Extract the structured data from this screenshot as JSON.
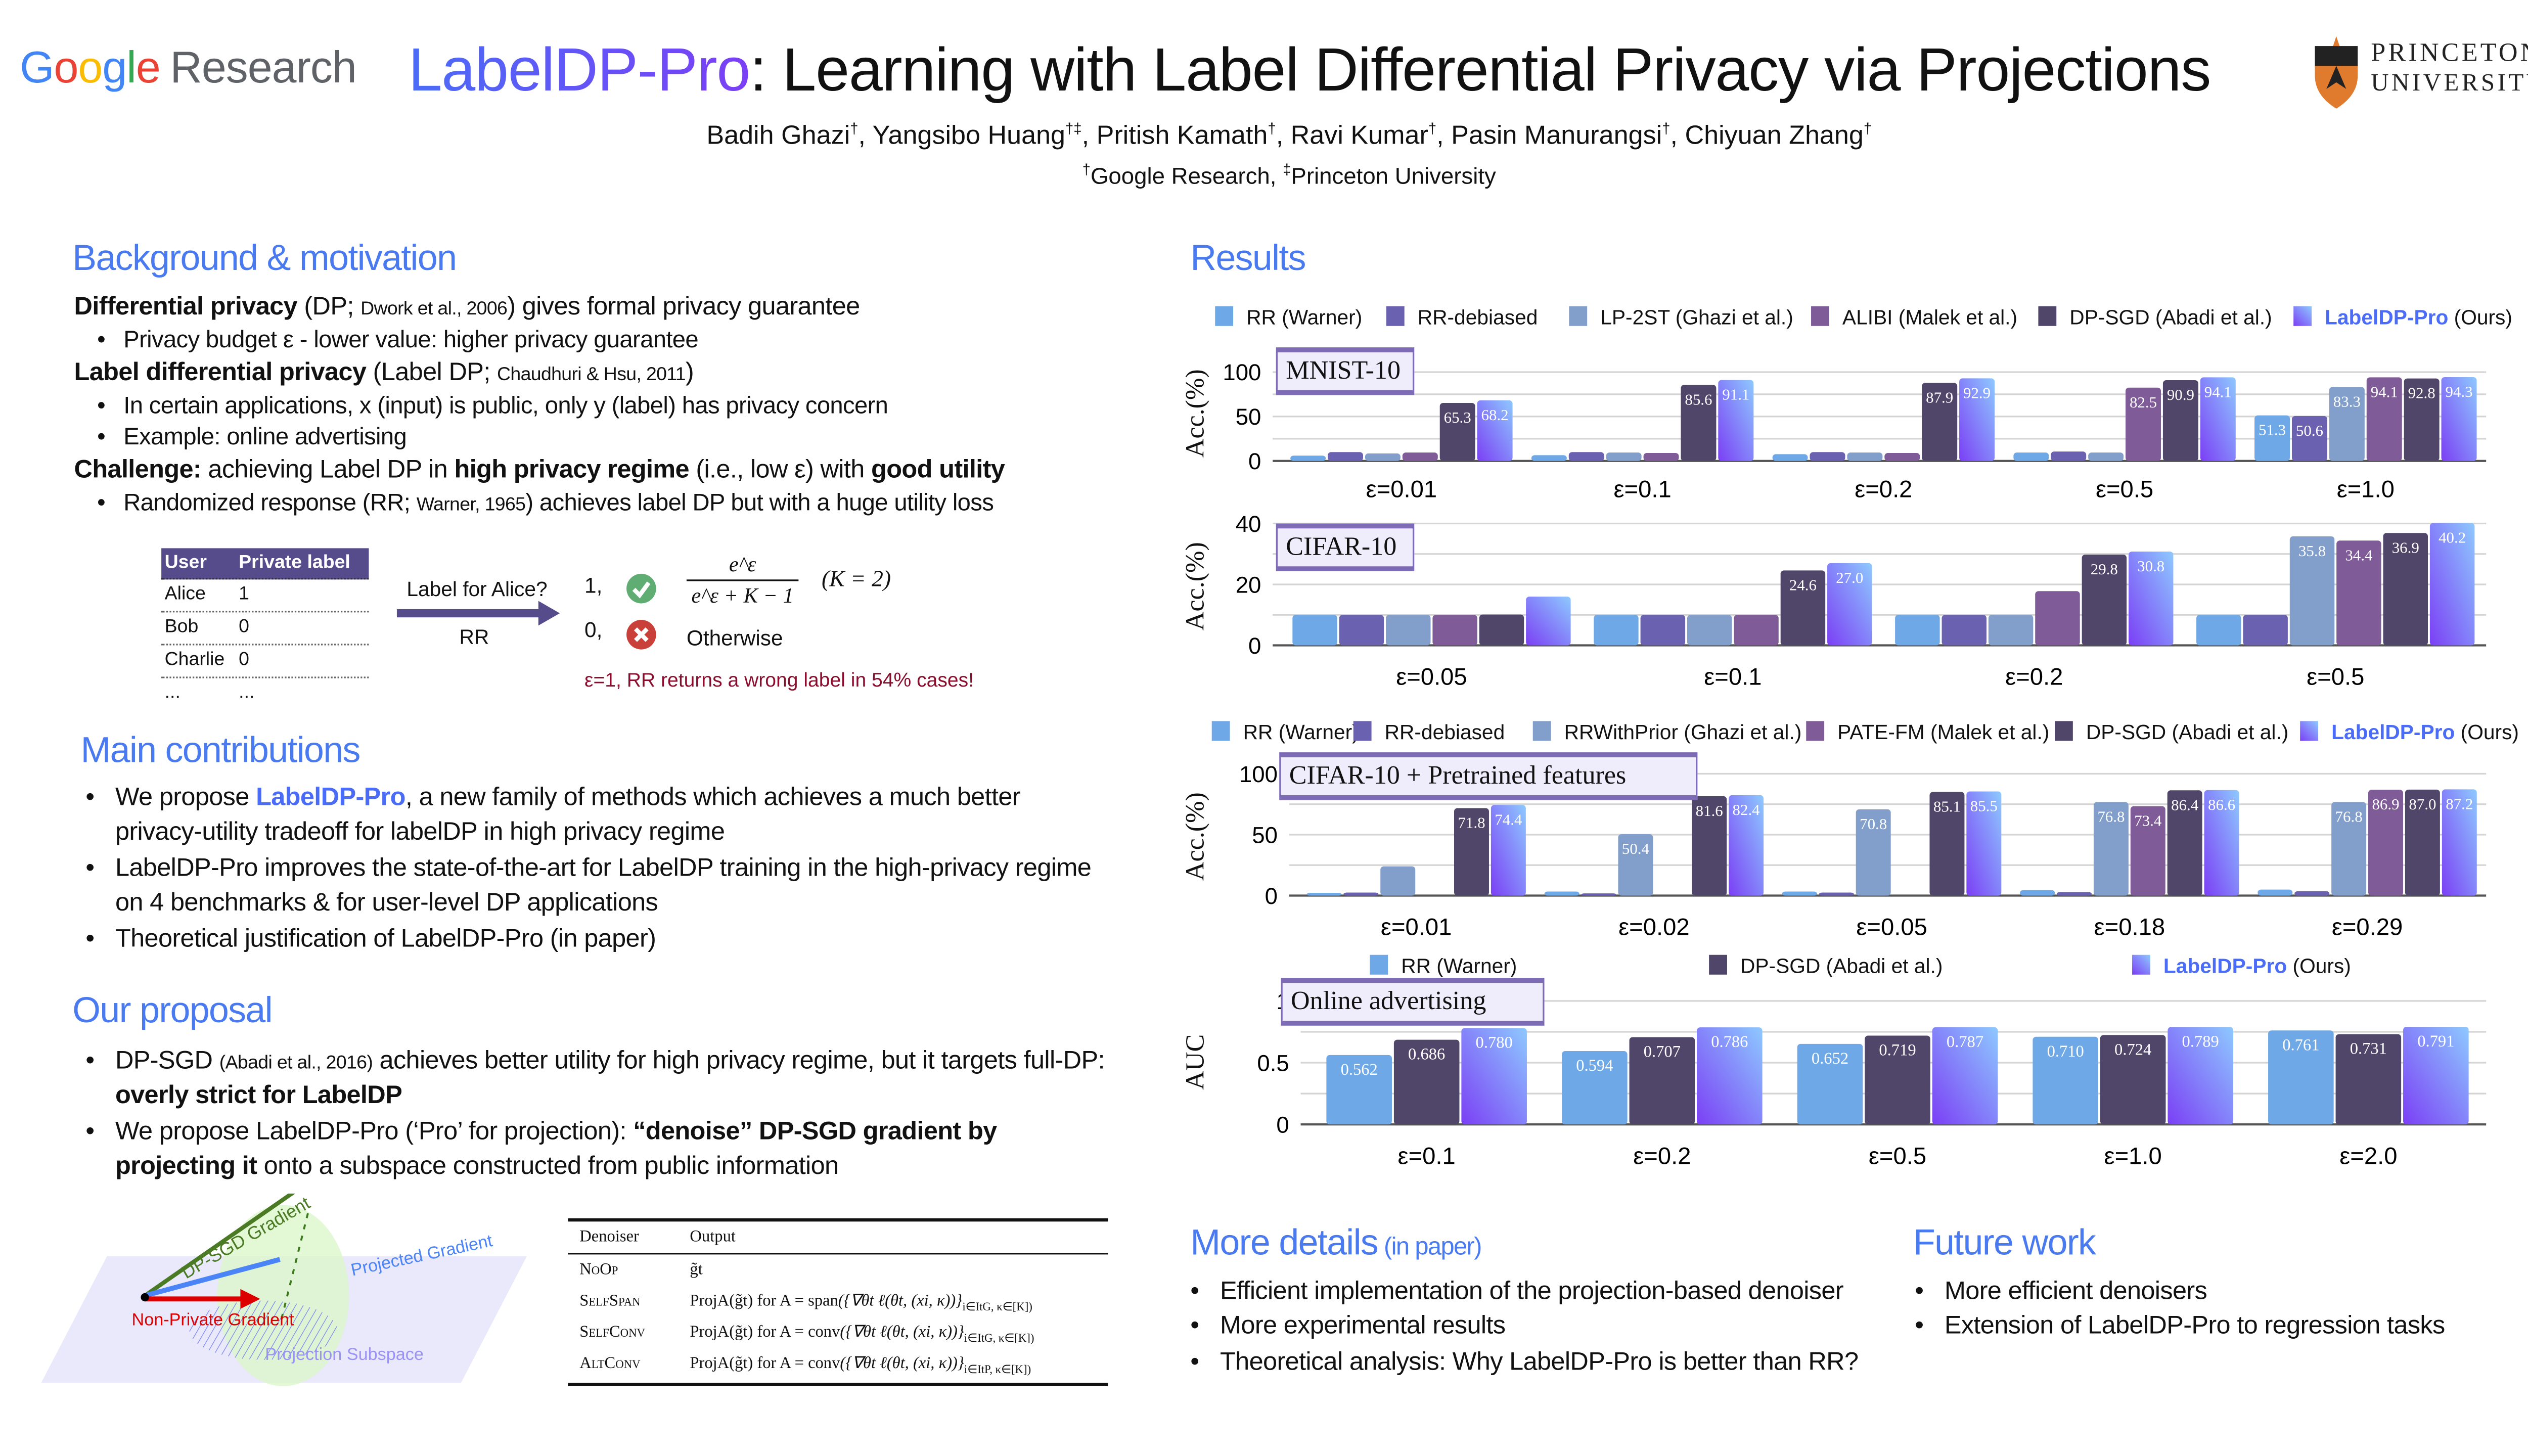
{
  "header": {
    "logo": {
      "g1": "G",
      "g2": "o",
      "g3": "o",
      "g4": "g",
      "g5": "l",
      "g6": "e",
      "research": "Research"
    },
    "title_accent": "LabelDP-Pro",
    "title_rest": ": Learning with Label Differential Privacy via Projections",
    "authors": [
      {
        "name": "Badih Ghazi",
        "mark": "†",
        "sep": ", "
      },
      {
        "name": "Yangsibo Huang",
        "mark": "†‡",
        "sep": ", "
      },
      {
        "name": "Pritish Kamath",
        "mark": "†",
        "sep": ", "
      },
      {
        "name": "Ravi Kumar",
        "mark": "†",
        "sep": ", "
      },
      {
        "name": "Pasin Manurangsi",
        "mark": "†",
        "sep": ", "
      },
      {
        "name": "Chiyuan Zhang",
        "mark": "†",
        "sep": ""
      }
    ],
    "affiliations": [
      {
        "mark": "†",
        "name": "Google Research, "
      },
      {
        "mark": "‡",
        "name": "Princeton University"
      }
    ],
    "princeton": {
      "line1": "PRINCETON",
      "line2": "UNIVERSITY"
    }
  },
  "background": {
    "heading": "Background & motivation",
    "lines": [
      [
        {
          "t": "Differential privacy",
          "s": "b"
        },
        {
          "t": " (DP; "
        },
        {
          "t": "Dwork et al., 2006",
          "s": "s"
        },
        {
          "t": ") gives formal privacy guarantee"
        }
      ],
      [
        {
          "t": "Privacy budget ε - lower value: higher privacy guarantee"
        }
      ],
      [
        {
          "t": "Label differential privacy",
          "s": "b"
        },
        {
          "t": " (Label DP; "
        },
        {
          "t": "Chaudhuri & Hsu, 2011",
          "s": "s"
        },
        {
          "t": ")"
        }
      ],
      [
        {
          "t": "In certain applications, x (input) is public, only y (label) has privacy concern"
        }
      ],
      [
        {
          "t": "Example: online advertising"
        }
      ],
      [
        {
          "t": "Challenge:",
          "s": "b"
        },
        {
          "t": " achieving Label DP in "
        },
        {
          "t": "high privacy regime",
          "s": "b"
        },
        {
          "t": " (i.e., low ε) with "
        },
        {
          "t": "good utility",
          "s": "b"
        }
      ],
      [
        {
          "t": "Randomized response (RR; "
        },
        {
          "t": "Warner, 1965",
          "s": "s"
        },
        {
          "t": ") achieves label DP but with a huge utility loss"
        }
      ]
    ],
    "table": {
      "headers": [
        "User",
        "Private label"
      ],
      "rows": [
        [
          "Alice",
          "1"
        ],
        [
          "Bob",
          "0"
        ],
        [
          "Charlie",
          "0"
        ],
        [
          "...",
          "..."
        ]
      ]
    },
    "rr": {
      "question": "Label for Alice?",
      "mechanism": "RR",
      "out1": "1,",
      "out0": "0,",
      "frac_num": "e^ε",
      "frac_den": "e^ε + K − 1",
      "k_note": "(K = 2)",
      "otherwise": "Otherwise",
      "warning": "ε=1, RR returns a wrong label in 54% cases!",
      "warning_color": "#8b0d2e"
    }
  },
  "contributions": {
    "heading": "Main contributions",
    "items": [
      [
        {
          "t": "We propose "
        },
        {
          "t": "LabelDP-Pro",
          "s": "a"
        },
        {
          "t": ", a new family of methods which achieves a much better"
        }
      ],
      [
        {
          "t": "privacy-utility tradeoff for labelDP in high privacy regime"
        }
      ],
      [
        {
          "t": "LabelDP-Pro improves the state-of-the-art for LabelDP training in the high-privacy regime"
        }
      ],
      [
        {
          "t": "on 4 benchmarks & for user-level DP applications"
        }
      ],
      [
        {
          "t": "Theoretical justification of LabelDP-Pro (in paper)"
        }
      ]
    ]
  },
  "proposal": {
    "heading": "Our proposal",
    "items": [
      [
        {
          "t": "DP-SGD "
        },
        {
          "t": "(Abadi et al., 2016)",
          "s": "s"
        },
        {
          "t": " achieves better utility for high privacy regime, but it targets full-DP:"
        }
      ],
      [
        {
          "t": "overly strict for LabelDP",
          "s": "b"
        }
      ],
      [
        {
          "t": "We propose LabelDP-Pro (‘Pro’ for projection): "
        },
        {
          "t": "“denoise” DP-SGD gradient by",
          "s": "b"
        }
      ],
      [
        {
          "t": "projecting it",
          "s": "b"
        },
        {
          "t": " onto a subspace constructed from public information"
        }
      ]
    ],
    "diagram": {
      "dpsgd": "DP-SGD Gradient",
      "projected": "Projected Gradient",
      "nonprivate": "Non-Private Gradient",
      "subspace": "Projection Subspace"
    },
    "denoisers": {
      "headers": [
        "Denoiser",
        "Output"
      ],
      "rows": [
        {
          "name": "NoOp",
          "out": "g̃t",
          "set": "",
          "sub": ""
        },
        {
          "name": "SelfSpan",
          "out": "ProjA(g̃t) for A = span",
          "set": "({∇θt ℓ(θt, (xi, κ))}",
          "sub": "i∈ItG, κ∈[K])"
        },
        {
          "name": "SelfConv",
          "out": "ProjA(g̃t) for A = conv",
          "set": "({∇θt ℓ(θt, (xi, κ))}",
          "sub": "i∈ItG, κ∈[K])"
        },
        {
          "name": "AltConv",
          "out": "ProjA(g̃t) for A = conv",
          "set": "({∇θt ℓ(θt, (xi, κ))}",
          "sub": "i∈ItP, κ∈[K])"
        }
      ]
    }
  },
  "results": {
    "heading": "Results"
  },
  "more_details": {
    "heading": "More details",
    "heading_note": " (in paper)",
    "items": [
      "Efficient implementation of the projection-based denoiser",
      "More experimental results",
      "Theoretical analysis: Why LabelDP-Pro is better than RR?"
    ]
  },
  "future_work": {
    "heading": "Future work",
    "items": [
      "More efficient denoisers",
      "Extension of LabelDP-Pro to regression tasks"
    ]
  },
  "colors": {
    "accent_blue": "#4a7af0",
    "rr": "#6fa8e6",
    "rr_debiased": "#6a62b0",
    "prior": "#829fcc",
    "alibi": "#7f5b98",
    "dpsgd": "#50466a",
    "pro_from": "#7b3ff5",
    "pro_to": "#8ec9ff"
  },
  "chart_data": [
    {
      "type": "bar",
      "title": "MNIST-10",
      "ylabel": "Acc.(%)",
      "ylim": [
        0,
        100
      ],
      "yticks": [
        0,
        50,
        100
      ],
      "decimals": 1,
      "categories": [
        "ε=0.01",
        "ε=0.1",
        "ε=0.2",
        "ε=0.5",
        "ε=1.0"
      ],
      "series": [
        {
          "name": "RR (Warner)",
          "color": "#6fa8e6",
          "values": [
            6,
            6.5,
            7.6,
            9.5,
            51.3
          ]
        },
        {
          "name": "RR-debiased",
          "color": "#6a62b0",
          "values": [
            10,
            10,
            10,
            10.6,
            50.6
          ]
        },
        {
          "name": "LP-2ST (Ghazi et al.)",
          "color": "#829fcc",
          "values": [
            8.5,
            9.5,
            9.5,
            9.5,
            83.3
          ]
        },
        {
          "name": "ALIBI (Malek et al.)",
          "color": "#7f5b98",
          "values": [
            9.5,
            9,
            9,
            82.5,
            94.1
          ]
        },
        {
          "name": "DP-SGD (Abadi et al.)",
          "color": "#50466a",
          "values": [
            65.3,
            85.6,
            87.9,
            90.9,
            92.8
          ]
        },
        {
          "name": "LabelDP-Pro",
          "name_suffix": " (Ours)",
          "color": "gradient",
          "values": [
            68.2,
            91.1,
            92.9,
            94.1,
            94.3
          ]
        }
      ]
    },
    {
      "type": "bar",
      "title": "CIFAR-10",
      "ylabel": "Acc.(%)",
      "ylim": [
        0,
        40
      ],
      "yticks": [
        0,
        20,
        40
      ],
      "decimals": 1,
      "categories": [
        "ε=0.05",
        "ε=0.1",
        "ε=0.2",
        "ε=0.5"
      ],
      "series": [
        {
          "name": "RR (Warner)",
          "color": "#6fa8e6",
          "values": [
            10,
            10,
            10,
            10
          ]
        },
        {
          "name": "RR-debiased",
          "color": "#6a62b0",
          "values": [
            10,
            10,
            10,
            10
          ]
        },
        {
          "name": "LP-2ST (Ghazi et al.)",
          "color": "#829fcc",
          "values": [
            10,
            10,
            10,
            35.8
          ]
        },
        {
          "name": "ALIBI (Malek et al.)",
          "color": "#7f5b98",
          "values": [
            10,
            10,
            17.8,
            34.4
          ]
        },
        {
          "name": "DP-SGD (Abadi et al.)",
          "color": "#50466a",
          "values": [
            10.1,
            24.6,
            29.8,
            36.9
          ]
        },
        {
          "name": "LabelDP-Pro",
          "name_suffix": " (Ours)",
          "color": "gradient",
          "values": [
            16,
            27.0,
            30.8,
            40.2
          ]
        }
      ]
    },
    {
      "type": "bar",
      "title": "CIFAR-10 + Pretrained features",
      "ylabel": "Acc.(%)",
      "ylim": [
        0,
        100
      ],
      "yticks": [
        0,
        50,
        100
      ],
      "decimals": 1,
      "categories": [
        "ε=0.01",
        "ε=0.02",
        "ε=0.05",
        "ε=0.18",
        "ε=0.29"
      ],
      "series": [
        {
          "name": "RR (Warner)",
          "color": "#6fa8e6",
          "values": [
            2.2,
            3.3,
            3.3,
            4.5,
            4.9
          ]
        },
        {
          "name": "RR-debiased",
          "color": "#6a62b0",
          "values": [
            2.5,
            1.8,
            2.5,
            2.9,
            3.6
          ]
        },
        {
          "name": "RRWithPrior (Ghazi et al.)",
          "color": "#829fcc",
          "values": [
            24,
            50.4,
            70.8,
            76.8,
            76.8
          ]
        },
        {
          "name": "PATE-FM (Malek et al.)",
          "color": "#7f5b98",
          "values": [
            null,
            null,
            null,
            73.4,
            86.9
          ]
        },
        {
          "name": "DP-SGD (Abadi et al.)",
          "color": "#50466a",
          "values": [
            71.8,
            81.6,
            85.1,
            86.4,
            87.0
          ]
        },
        {
          "name": "LabelDP-Pro",
          "name_suffix": " (Ours)",
          "color": "gradient",
          "values": [
            74.4,
            82.4,
            85.5,
            86.6,
            87.2
          ]
        }
      ]
    },
    {
      "type": "bar",
      "title": "Online advertising",
      "ylabel": "AUC",
      "ylim": [
        0,
        1
      ],
      "yticks": [
        0,
        0.5,
        1
      ],
      "decimals": 3,
      "categories": [
        "ε=0.1",
        "ε=0.2",
        "ε=0.5",
        "ε=1.0",
        "ε=2.0"
      ],
      "series": [
        {
          "name": "RR (Warner)",
          "color": "#6fa8e6",
          "values": [
            0.562,
            0.594,
            0.652,
            0.71,
            0.761
          ]
        },
        {
          "name": "DP-SGD (Abadi et al.)",
          "color": "#50466a",
          "values": [
            0.686,
            0.707,
            0.719,
            0.724,
            0.731
          ]
        },
        {
          "name": "LabelDP-Pro",
          "name_suffix": " (Ours)",
          "color": "gradient",
          "values": [
            0.78,
            0.786,
            0.787,
            0.789,
            0.791
          ]
        }
      ]
    }
  ]
}
